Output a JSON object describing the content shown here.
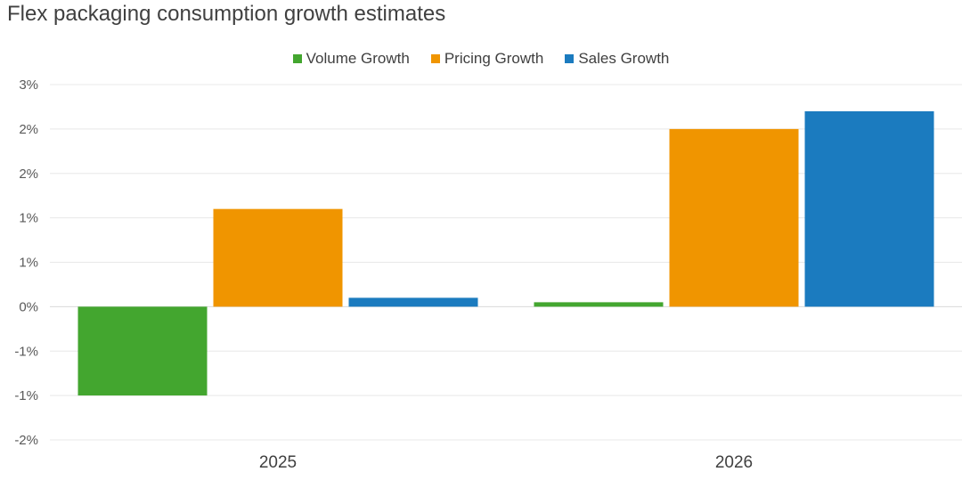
{
  "chart_data": {
    "type": "bar",
    "title": "Flex packaging consumption growth estimates",
    "categories": [
      "2025",
      "2026"
    ],
    "series": [
      {
        "name": "Volume Growth",
        "color": "#43a62f",
        "values": [
          -1.0,
          0.05
        ]
      },
      {
        "name": "Pricing Growth",
        "color": "#f09500",
        "values": [
          1.1,
          2.0
        ]
      },
      {
        "name": "Sales Growth",
        "color": "#1b7bbf",
        "values": [
          0.1,
          2.2
        ]
      }
    ],
    "ylim": [
      -1.5,
      2.5
    ],
    "yticks": [
      2.5,
      2.0,
      1.5,
      1.0,
      0.5,
      0.0,
      -0.5,
      -1.0,
      -1.5
    ],
    "ytick_labels": [
      "3%",
      "2%",
      "2%",
      "1%",
      "1%",
      "0%",
      "-1%",
      "-1%",
      "-2%"
    ],
    "xlabel": "",
    "ylabel": "",
    "legend": "top-center",
    "grid": true
  }
}
